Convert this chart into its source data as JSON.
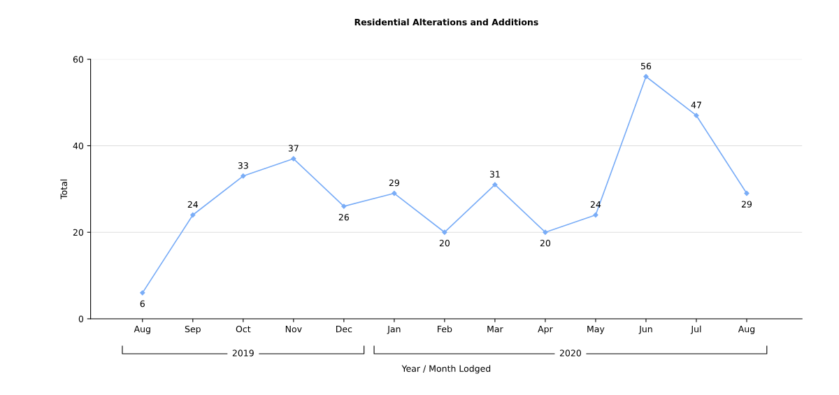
{
  "chart_data": {
    "type": "line",
    "title": "Residential Alterations and Additions",
    "xlabel": "Year / Month Lodged",
    "ylabel": "Total",
    "categories": [
      "Aug",
      "Sep",
      "Oct",
      "Nov",
      "Dec",
      "Jan",
      "Feb",
      "Mar",
      "Apr",
      "May",
      "Jun",
      "Jul",
      "Aug"
    ],
    "series": [
      {
        "color": "#7aadf7",
        "values": [
          6,
          24,
          33,
          37,
          26,
          29,
          20,
          31,
          20,
          24,
          56,
          47,
          29
        ]
      }
    ],
    "ylim": [
      0,
      60
    ],
    "yticks": [
      0,
      20,
      40,
      60
    ],
    "grid": "y",
    "data_labels": true,
    "marker": "diamond",
    "annotations": [
      "2019",
      "2020"
    ]
  }
}
